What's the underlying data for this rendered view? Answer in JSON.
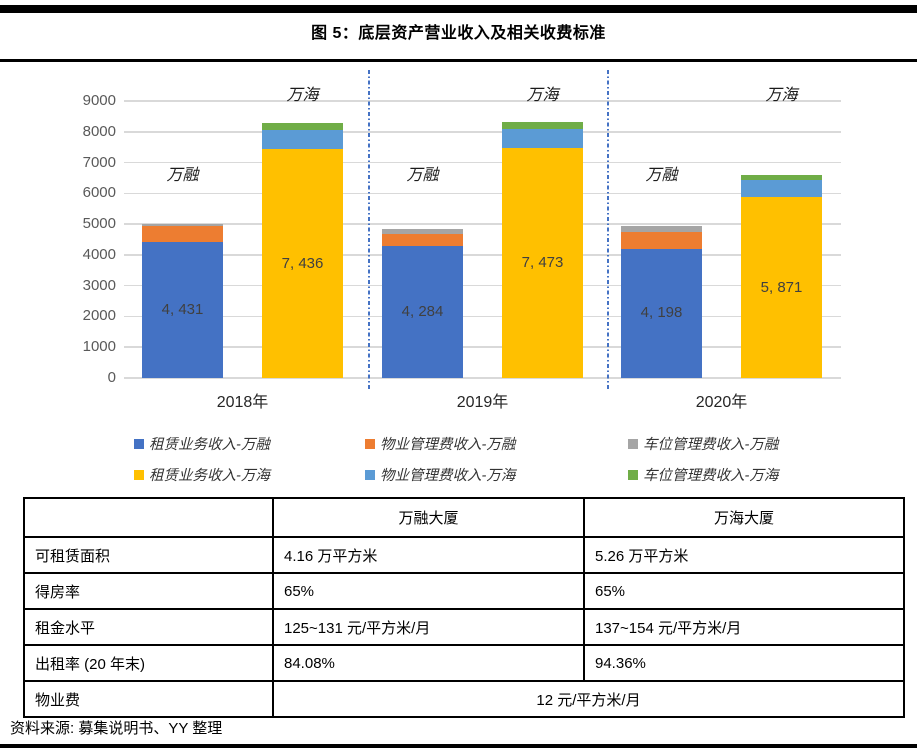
{
  "page": {
    "title": "图 5：底层资产营业收入及相关收费标准",
    "source_note": "资料来源: 募集说明书、YY 整理"
  },
  "colors": {
    "rule_black": "#000000",
    "gridline_gray": "#D9D9D9",
    "separator_blue": "#4472C4",
    "axis_text_gray": "#595959",
    "value_label_gray": "#404040"
  },
  "chart_data": {
    "type": "bar",
    "stacked": true,
    "grid": true,
    "legend_position": "bottom",
    "ylim": [
      0,
      9000
    ],
    "ytick_step": 1000,
    "categories": [
      "2018年",
      "2019年",
      "2020年"
    ],
    "series": [
      {
        "name": "租赁业务收入-万融",
        "stack": "万融",
        "color": "#4472C4",
        "values": [
          4431,
          4284,
          4198
        ]
      },
      {
        "name": "物业管理费收入-万融",
        "stack": "万融",
        "color": "#ED7D31",
        "values": [
          500,
          380,
          545
        ]
      },
      {
        "name": "车位管理费收入-万融",
        "stack": "万融",
        "color": "#A5A5A5",
        "values": [
          85,
          185,
          200
        ]
      },
      {
        "name": "租赁业务收入-万海",
        "stack": "万海",
        "color": "#FFC000",
        "values": [
          7436,
          7473,
          5871
        ]
      },
      {
        "name": "物业管理费收入-万海",
        "stack": "万海",
        "color": "#5B9BD5",
        "values": [
          620,
          625,
          570
        ]
      },
      {
        "name": "车位管理费收入-万海",
        "stack": "万海",
        "color": "#70AD47",
        "values": [
          215,
          225,
          140
        ]
      }
    ],
    "value_labels_display": [
      "4, 431",
      "7, 436",
      "4, 284",
      "7, 473",
      "4, 198",
      "5, 871"
    ],
    "annotations": [
      {
        "text": "万融",
        "bar": 0,
        "row": "low"
      },
      {
        "text": "万海",
        "bar": 1,
        "row": "high"
      },
      {
        "text": "万融",
        "bar": 2,
        "row": "low"
      },
      {
        "text": "万海",
        "bar": 3,
        "row": "high"
      },
      {
        "text": "万融",
        "bar": 4,
        "row": "low"
      },
      {
        "text": "万海",
        "bar": 5,
        "row": "high"
      }
    ]
  },
  "legend": {
    "items": [
      {
        "label": "租赁业务收入-万融",
        "color": "#4472C4"
      },
      {
        "label": "物业管理费收入-万融",
        "color": "#ED7D31"
      },
      {
        "label": "车位管理费收入-万融",
        "color": "#A5A5A5"
      },
      {
        "label": "租赁业务收入-万海",
        "color": "#FFC000"
      },
      {
        "label": "物业管理费收入-万海",
        "color": "#5B9BD5"
      },
      {
        "label": "车位管理费收入-万海",
        "color": "#70AD47"
      }
    ]
  },
  "table": {
    "header": [
      "",
      "万融大厦",
      "万海大厦"
    ],
    "rows": [
      {
        "label": "可租赁面积",
        "cells": [
          "4.16 万平方米",
          "5.26 万平方米"
        ]
      },
      {
        "label": "得房率",
        "cells": [
          "65%",
          "65%"
        ]
      },
      {
        "label": "租金水平",
        "cells": [
          "125~131 元/平方米/月",
          "137~154 元/平方米/月"
        ]
      },
      {
        "label": "出租率 (20 年末)",
        "cells": [
          "84.08%",
          "94.36%"
        ]
      },
      {
        "label": "物业费",
        "cells": [
          "12 元/平方米/月"
        ],
        "merged": true
      }
    ]
  }
}
